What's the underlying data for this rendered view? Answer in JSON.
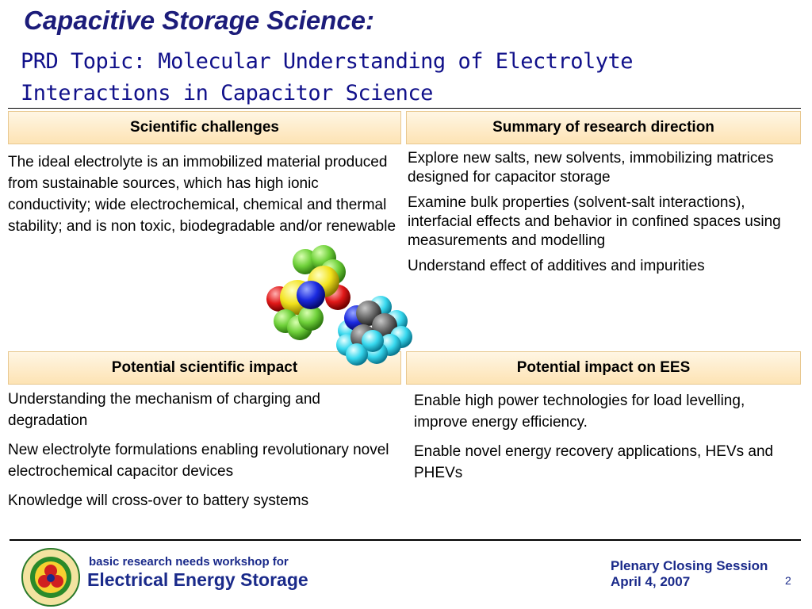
{
  "slide": {
    "title": "Capacitive Storage Science:",
    "subtitle": "PRD Topic: Molecular Understanding of Electrolyte Interactions in Capacitor Science"
  },
  "panels": {
    "challenges": {
      "header": "Scientific challenges",
      "paragraphs": [
        "The ideal electrolyte is an immobilized material produced from sustainable sources, which has high ionic conductivity; wide electrochemical, chemical and thermal stability; and is non toxic, biodegradable and/or renewable"
      ]
    },
    "research": {
      "header": "Summary of research direction",
      "paragraphs": [
        "Explore new salts, new solvents, immobilizing matrices designed for capacitor storage",
        "Examine bulk properties (solvent-salt interactions), interfacial effects and behavior in confined spaces using measurements and modelling",
        "Understand effect of additives and impurities"
      ]
    },
    "scientific_impact": {
      "header": "Potential scientific impact",
      "paragraphs": [
        "Understanding the mechanism of charging and degradation",
        "New electrolyte formulations enabling revolutionary novel electrochemical capacitor devices",
        "Knowledge will cross-over to battery systems"
      ]
    },
    "ees_impact": {
      "header": "Potential impact on EES",
      "paragraphs": [
        "Enable high power technologies for load levelling, improve energy efficiency.",
        "Enable novel energy recovery applications, HEVs and PHEVs"
      ]
    }
  },
  "footer": {
    "workshop_line1": "basic research needs workshop for",
    "workshop_line2": "Electrical Energy Storage",
    "session_title": "Plenary Closing Session",
    "session_date": "April 4, 2007",
    "page_number": "2",
    "logo_icon": "office-of-basic-energy-sciences-seal"
  },
  "illustration": {
    "icon": "electrolyte-molecule-model"
  },
  "colors": {
    "title": "#1c1c7a",
    "header_bg_top": "#fff6e4",
    "header_bg_bottom": "#fde3b4",
    "footer_text": "#1a2a8a"
  }
}
